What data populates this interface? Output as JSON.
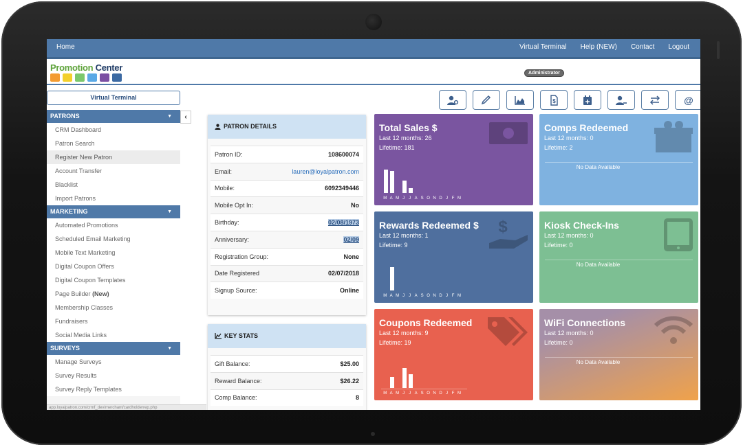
{
  "topnav": {
    "home": "Home",
    "links": [
      "Virtual Terminal",
      "Help (NEW)",
      "Contact",
      "Logout"
    ]
  },
  "header": {
    "logo_word1": "Promotion",
    "logo_word2": "Center",
    "logo_colors": [
      "#f39c32",
      "#f3d02b",
      "#7bc86c",
      "#5aa9e6",
      "#7b4fa3",
      "#3c6aa3"
    ],
    "badge": "Administrator"
  },
  "sidebar": {
    "vt_button": "Virtual Terminal",
    "collapse_icon": "chevron-left-icon",
    "sections": [
      {
        "title": "PATRONS",
        "items": [
          "CRM Dashboard",
          "Patron Search",
          "Register New Patron",
          "Account Transfer",
          "Blacklist",
          "Import Patrons"
        ],
        "active": "Register New Patron"
      },
      {
        "title": "MARKETING",
        "items": [
          "Automated Promotions",
          "Scheduled Email Marketing",
          "Mobile Text Marketing",
          "Digital Coupon Offers",
          "Digital Coupon Templates",
          "Page Builder",
          "Membership Classes",
          "Fundraisers",
          "Social Media Links"
        ],
        "page_builder_suffix": "(New)"
      },
      {
        "title": "SURVEYS",
        "items": [
          "Manage Surveys",
          "Survey Results",
          "Survey Reply Templates"
        ]
      }
    ],
    "status_url": "app.loyalpatron.com/crmf_dev/merchant/cardholderrep.php"
  },
  "toolbar": {
    "icons": [
      "user-gear-icon",
      "pencil-icon",
      "area-chart-icon",
      "dollar-file-icon",
      "calendar-plus-icon",
      "user-minus-icon",
      "transfer-arrows-icon",
      "at-sign-icon"
    ]
  },
  "patron_details": {
    "title": "PATRON DETAILS",
    "rows": [
      {
        "label": "Patron ID:",
        "value": "108600074"
      },
      {
        "label": "Email:",
        "value": "lauren@loyalpatron.com"
      },
      {
        "label": "Mobile:",
        "value": "6092349446"
      },
      {
        "label": "Mobile Opt In:",
        "value": "No"
      },
      {
        "label": "Birthday:",
        "value": "02/08/1973"
      },
      {
        "label": "Anniversary:",
        "value": "02/09"
      },
      {
        "label": "Registration Group:",
        "value": "None"
      },
      {
        "label": "Date Registered",
        "value": "02/07/2018"
      },
      {
        "label": "Signup Source:",
        "value": "Online"
      }
    ]
  },
  "key_stats": {
    "title": "KEY STATS",
    "rows": [
      {
        "label": "Gift Balance:",
        "value": "$25.00"
      },
      {
        "label": "Reward Balance:",
        "value": "$26.22"
      },
      {
        "label": "Comp Balance:",
        "value": "8"
      }
    ]
  },
  "tiles": {
    "months": [
      "M",
      "A",
      "M",
      "J",
      "J",
      "A",
      "S",
      "O",
      "N",
      "D",
      "J",
      "F",
      "M"
    ],
    "nodata": "No Data Available",
    "total_sales": {
      "title": "Total Sales $",
      "last12": "Last 12 months: 26",
      "lifetime": "Lifetime: 181",
      "color": "#7a55a0",
      "bars": [
        1.0,
        0.95,
        0,
        0.52,
        0.22,
        0,
        0,
        0,
        0,
        0,
        0,
        0,
        0
      ]
    },
    "comps": {
      "title": "Comps Redeemed",
      "last12": "Last 12 months: 0",
      "lifetime": "Lifetime: 2",
      "color": "#7fb2e0"
    },
    "rewards": {
      "title": "Rewards Redeemed $",
      "last12": "Last 12 months: 1",
      "lifetime": "Lifetime: 9",
      "color": "#4f6f9e",
      "bars": [
        0,
        1.0,
        0,
        0,
        0,
        0,
        0,
        0,
        0,
        0,
        0,
        0,
        0
      ]
    },
    "kiosk": {
      "title": "Kiosk Check-Ins",
      "last12": "Last 12 months: 0",
      "lifetime": "Lifetime: 0",
      "color": "#7dbf93"
    },
    "coupons": {
      "title": "Coupons Redeemed",
      "last12": "Last 12 months: 9",
      "lifetime": "Lifetime: 19",
      "color": "#e8614f",
      "bars": [
        0,
        0.46,
        0,
        0.84,
        0.58,
        0,
        0,
        0,
        0,
        0,
        0,
        0,
        0
      ]
    },
    "wifi": {
      "title": "WiFi Connections",
      "last12": "Last 12 months: 0",
      "lifetime": "Lifetime: 0",
      "color_from": "#a58fa8",
      "color_to": "#f0a24a"
    }
  }
}
